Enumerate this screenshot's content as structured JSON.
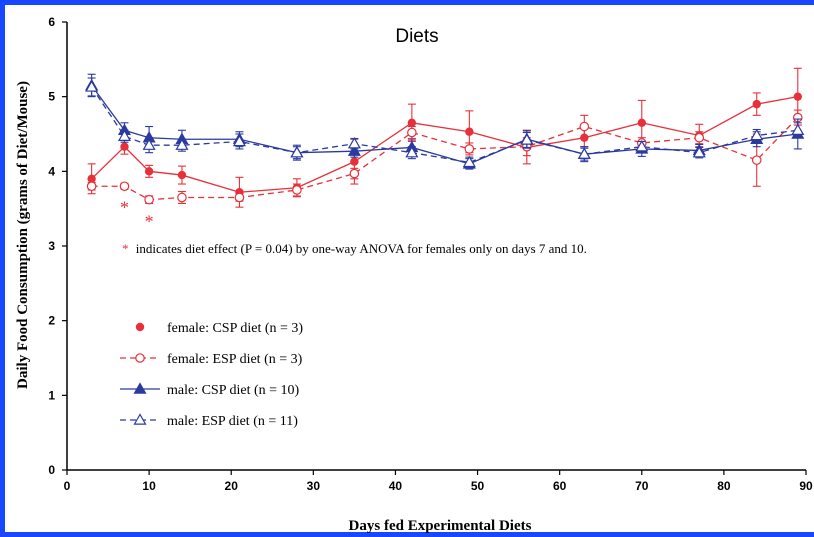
{
  "chart_data": {
    "type": "line",
    "title": "Diets",
    "xlabel": "Days fed Experimental Diets",
    "ylabel": "Daily Food Consumption (grams of Diet/Mouse)",
    "xlim": [
      0,
      90
    ],
    "ylim": [
      0,
      6
    ],
    "xticks": [
      0,
      10,
      20,
      30,
      40,
      50,
      60,
      70,
      80,
      90
    ],
    "yticks": [
      0,
      1,
      2,
      3,
      4,
      5,
      6
    ],
    "x_tick_labels": [
      "0",
      "10",
      "20",
      "30",
      "40",
      "50",
      "60",
      "70",
      "80",
      "90"
    ],
    "y_tick_labels": [
      "0",
      "1",
      "2",
      "3",
      "4",
      "5",
      "6"
    ],
    "grid": false,
    "legend_position": "lower-left",
    "annotation": {
      "star_symbol": "*",
      "text": "indicates diet effect (P = 0.04) by one-way ANOVA for females only on days 7 and 10.",
      "star_days": [
        7,
        10
      ]
    },
    "series": [
      {
        "name": "female: CSP diet (n = 3)",
        "color": "#e8303a",
        "marker": "filled-circle",
        "line": "solid",
        "x": [
          3,
          7,
          10,
          14,
          21,
          28,
          35,
          42,
          49,
          56,
          63,
          70,
          77,
          84,
          89
        ],
        "y": [
          3.9,
          4.33,
          4.0,
          3.95,
          3.72,
          3.78,
          4.13,
          4.65,
          4.53,
          4.32,
          4.45,
          4.65,
          4.48,
          4.9,
          5.0
        ],
        "err": [
          0.2,
          0.1,
          0.08,
          0.12,
          0.2,
          0.12,
          0.3,
          0.25,
          0.28,
          0.22,
          0.12,
          0.3,
          0.15,
          0.15,
          0.38
        ]
      },
      {
        "name": "female: ESP diet (n = 3)",
        "color": "#e8303a",
        "marker": "open-circle",
        "line": "dashed",
        "x": [
          3,
          7,
          10,
          14,
          21,
          28,
          35,
          42,
          49,
          56,
          63,
          70,
          77,
          84,
          89
        ],
        "y": [
          3.8,
          3.8,
          3.62,
          3.65,
          3.65,
          3.75,
          3.97,
          4.52,
          4.3,
          4.33,
          4.6,
          4.38,
          4.45,
          4.15,
          4.72
        ],
        "err": [
          0.05,
          0.04,
          0.05,
          0.08,
          0.05,
          0.08,
          0.07,
          0.08,
          0.08,
          0.12,
          0.15,
          0.07,
          0.08,
          0.35,
          0.1
        ]
      },
      {
        "name": "male: CSP diet (n = 10)",
        "color": "#2b3a9f",
        "marker": "filled-triangle",
        "line": "solid",
        "x": [
          3,
          7,
          10,
          14,
          21,
          28,
          35,
          42,
          49,
          56,
          63,
          70,
          77,
          84,
          89
        ],
        "y": [
          5.15,
          4.55,
          4.45,
          4.43,
          4.43,
          4.25,
          4.27,
          4.32,
          4.1,
          4.43,
          4.23,
          4.3,
          4.28,
          4.43,
          4.5
        ],
        "err": [
          0.15,
          0.1,
          0.15,
          0.12,
          0.1,
          0.1,
          0.08,
          0.1,
          0.07,
          0.12,
          0.1,
          0.1,
          0.08,
          0.1,
          0.2
        ]
      },
      {
        "name": "male: ESP diet (n = 11)",
        "color": "#2b3a9f",
        "marker": "open-triangle",
        "line": "dashed",
        "x": [
          3,
          7,
          10,
          14,
          21,
          28,
          35,
          42,
          49,
          56,
          63,
          70,
          77,
          84,
          89
        ],
        "y": [
          5.13,
          4.47,
          4.35,
          4.35,
          4.4,
          4.25,
          4.37,
          4.25,
          4.12,
          4.42,
          4.23,
          4.33,
          4.25,
          4.48,
          4.55
        ],
        "err": [
          0.12,
          0.08,
          0.1,
          0.08,
          0.1,
          0.08,
          0.07,
          0.08,
          0.07,
          0.1,
          0.08,
          0.07,
          0.07,
          0.08,
          0.1
        ]
      }
    ]
  }
}
